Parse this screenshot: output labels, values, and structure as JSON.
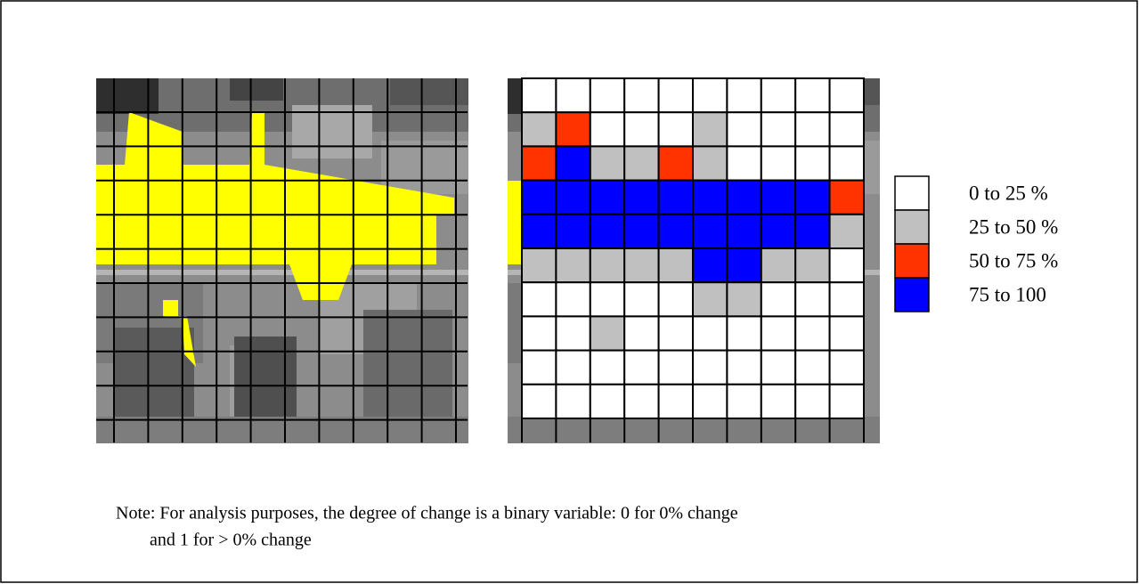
{
  "legend": [
    {
      "label": "0 to 25 %",
      "color": "#ffffff"
    },
    {
      "label": "25 to 50 %",
      "color": "#c0c0c0"
    },
    {
      "label": "50 to 75 %",
      "color": "#ff3300"
    },
    {
      "label": "75 to 100",
      "color": "#0000ff"
    }
  ],
  "cells": [
    [
      "#ffffff",
      "#ffffff",
      "#ffffff",
      "#ffffff",
      "#ffffff",
      "#ffffff",
      "#ffffff",
      "#ffffff",
      "#ffffff",
      "#ffffff"
    ],
    [
      "#c0c0c0",
      "#ff3300",
      "#ffffff",
      "#ffffff",
      "#ffffff",
      "#c0c0c0",
      "#ffffff",
      "#ffffff",
      "#ffffff",
      "#ffffff"
    ],
    [
      "#ff3300",
      "#0000ff",
      "#c0c0c0",
      "#c0c0c0",
      "#ff3300",
      "#c0c0c0",
      "#ffffff",
      "#ffffff",
      "#ffffff",
      "#ffffff"
    ],
    [
      "#0000ff",
      "#0000ff",
      "#0000ff",
      "#0000ff",
      "#0000ff",
      "#0000ff",
      "#0000ff",
      "#0000ff",
      "#0000ff",
      "#ff3300"
    ],
    [
      "#0000ff",
      "#0000ff",
      "#0000ff",
      "#0000ff",
      "#0000ff",
      "#0000ff",
      "#0000ff",
      "#0000ff",
      "#0000ff",
      "#c0c0c0"
    ],
    [
      "#c0c0c0",
      "#c0c0c0",
      "#c0c0c0",
      "#c0c0c0",
      "#c0c0c0",
      "#0000ff",
      "#0000ff",
      "#c0c0c0",
      "#c0c0c0",
      "#ffffff"
    ],
    [
      "#ffffff",
      "#ffffff",
      "#ffffff",
      "#ffffff",
      "#ffffff",
      "#c0c0c0",
      "#c0c0c0",
      "#ffffff",
      "#ffffff",
      "#ffffff"
    ],
    [
      "#ffffff",
      "#ffffff",
      "#c0c0c0",
      "#ffffff",
      "#ffffff",
      "#ffffff",
      "#ffffff",
      "#ffffff",
      "#ffffff",
      "#ffffff"
    ],
    [
      "#ffffff",
      "#ffffff",
      "#ffffff",
      "#ffffff",
      "#ffffff",
      "#ffffff",
      "#ffffff",
      "#ffffff",
      "#ffffff",
      "#ffffff"
    ],
    [
      "#ffffff",
      "#ffffff",
      "#ffffff",
      "#ffffff",
      "#ffffff",
      "#ffffff",
      "#ffffff",
      "#ffffff",
      "#ffffff",
      "#ffffff"
    ]
  ],
  "note": {
    "line1": "Note:  For analysis purposes, the degree of change is a binary variable:  0 for 0% change",
    "line2": "and 1 for > 0% change"
  }
}
